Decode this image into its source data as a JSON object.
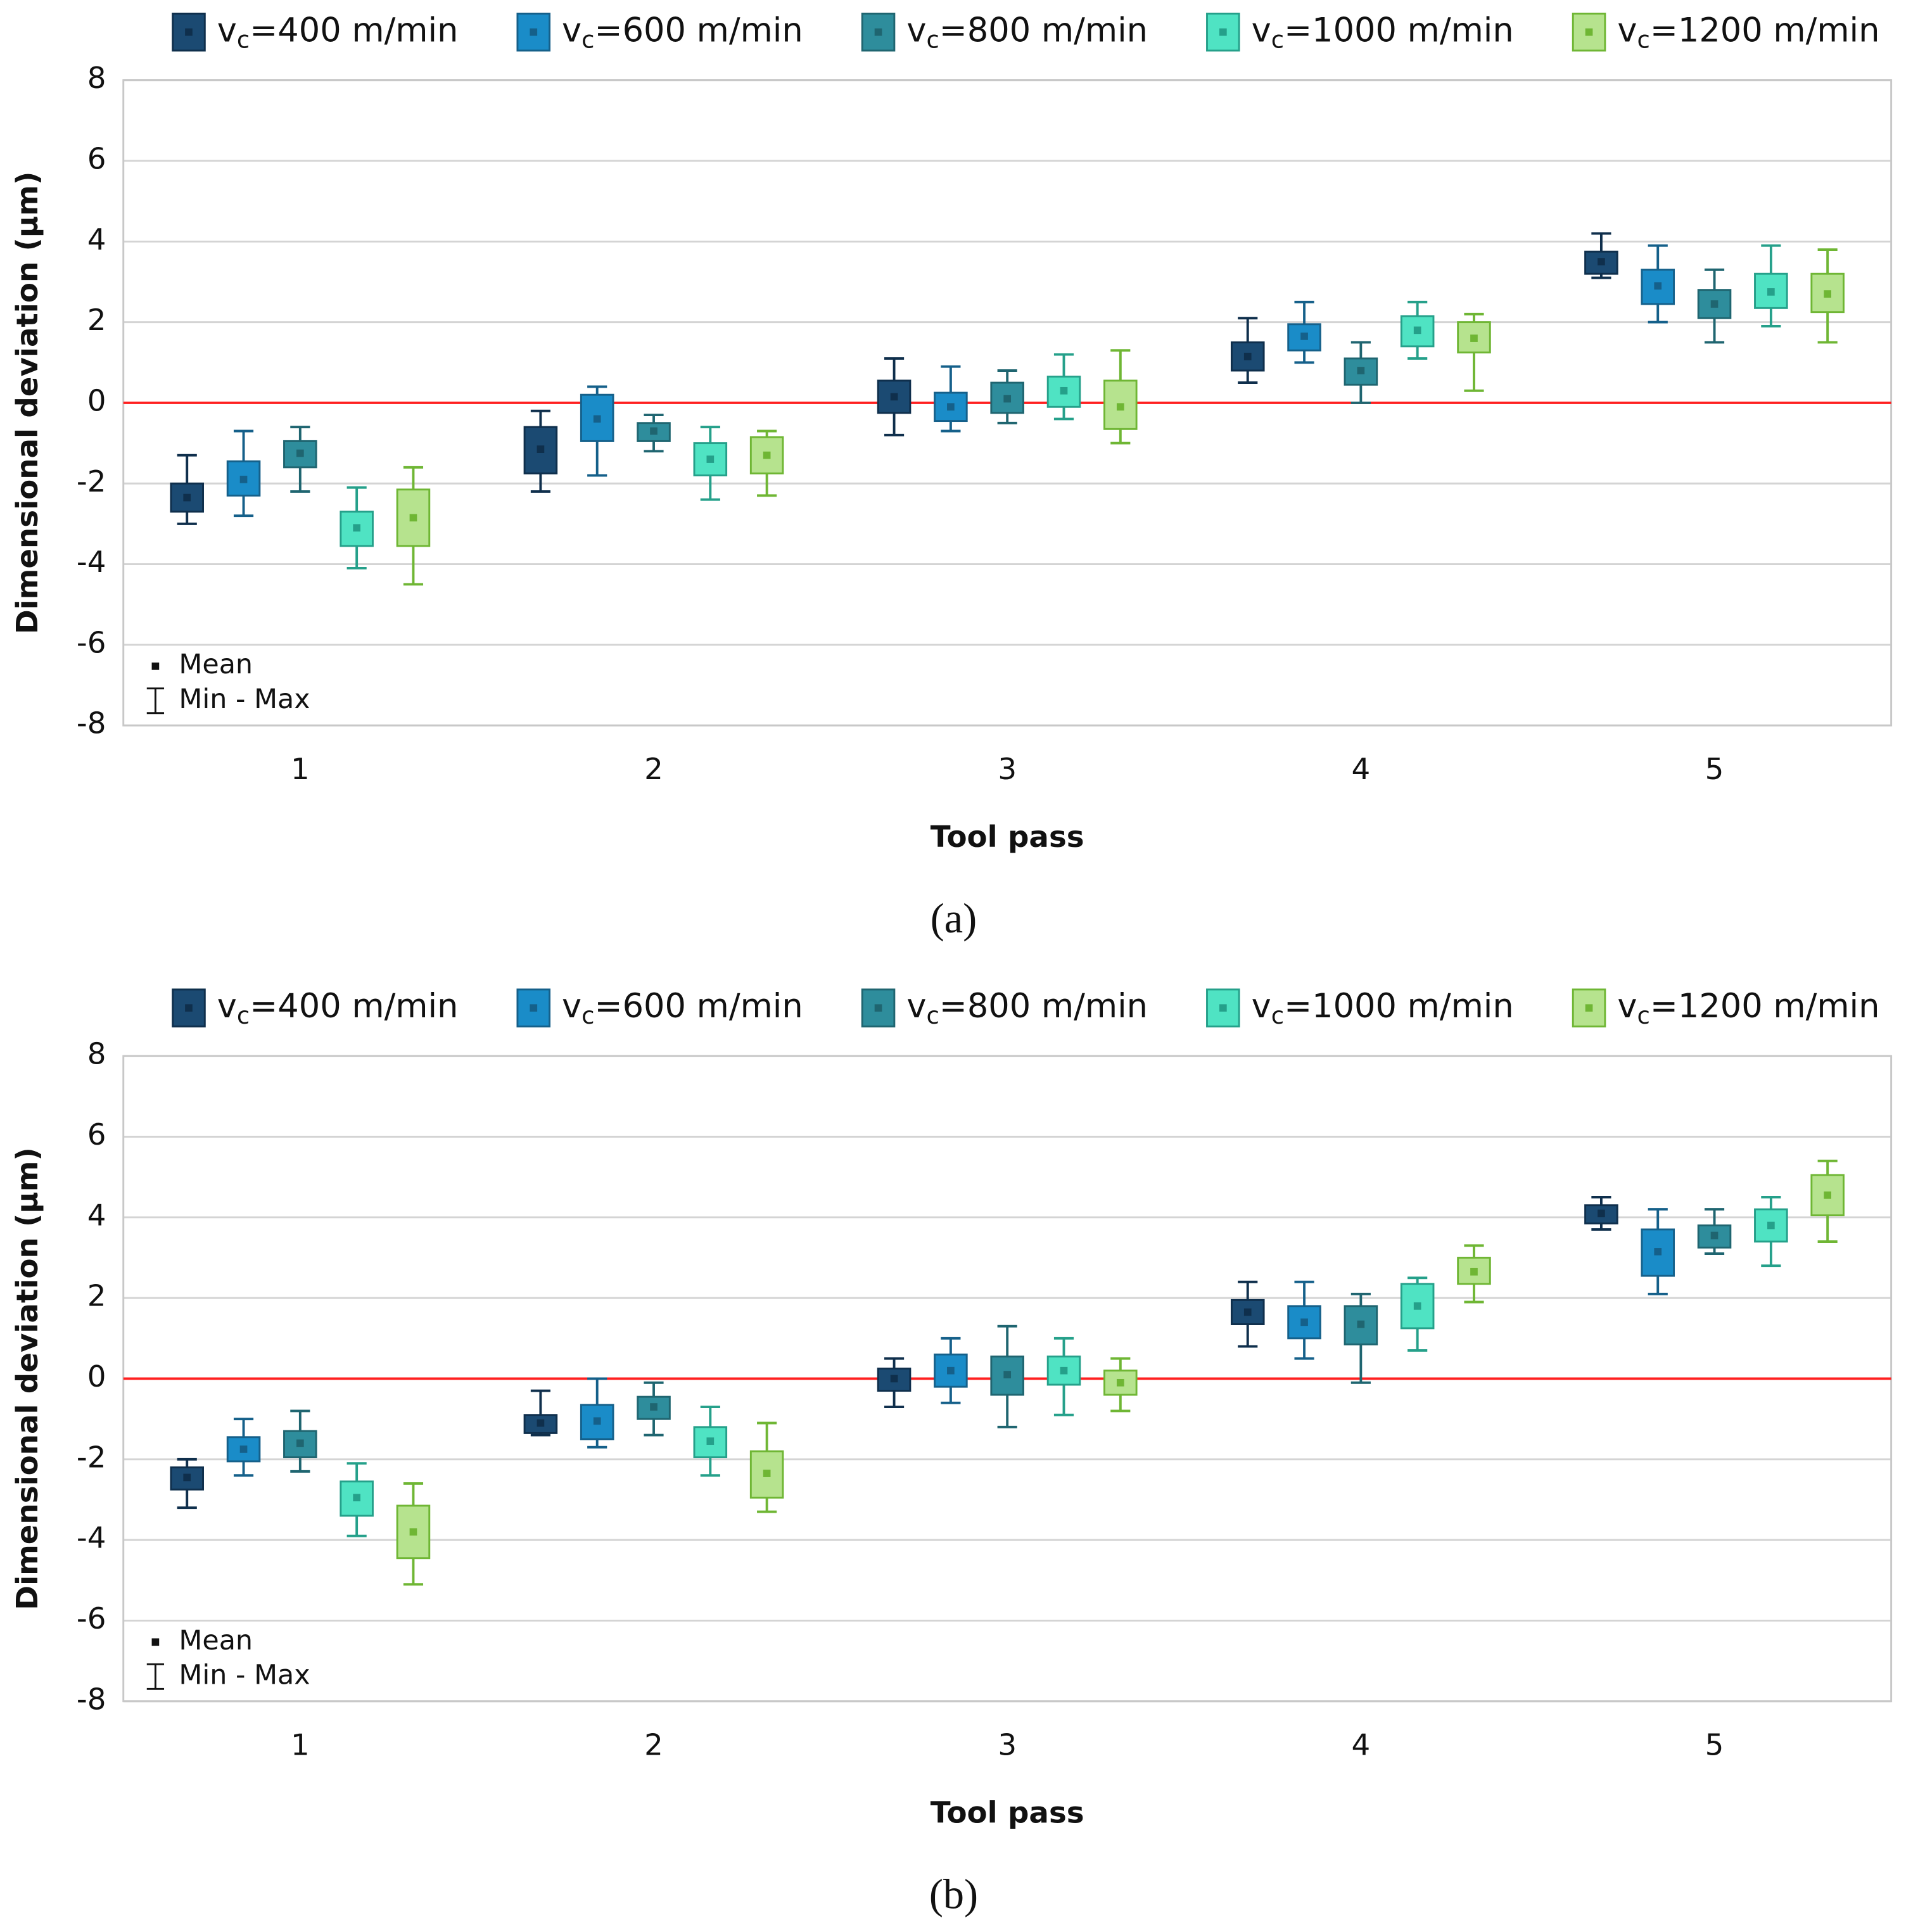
{
  "chart_data": [
    {
      "type": "box",
      "caption": "(a)",
      "xlabel": "Tool pass",
      "ylabel": "Dimensional deviation (µm)",
      "categories": [
        "1",
        "2",
        "3",
        "4",
        "5"
      ],
      "ylim": [
        -8,
        8
      ],
      "yticks": [
        -8,
        -6,
        -4,
        -2,
        0,
        2,
        4,
        6,
        8
      ],
      "grid": true,
      "reference_line": {
        "value": 0,
        "color": "#ff2020"
      },
      "legend_position": "top",
      "legend_notes": {
        "mean": "Mean",
        "range": "Min - Max"
      },
      "series": [
        {
          "name": "vc=400 m/min",
          "color": "#1b4a72",
          "edge_color": "#0f2f4c",
          "min": [
            -3.0,
            -2.2,
            -0.8,
            0.5,
            3.1
          ],
          "box_low": [
            -2.7,
            -1.75,
            -0.25,
            0.8,
            3.2
          ],
          "box_high": [
            -2.0,
            -0.6,
            0.55,
            1.5,
            3.75
          ],
          "max": [
            -1.3,
            -0.2,
            1.1,
            2.1,
            4.2
          ],
          "mean": [
            -2.35,
            -1.15,
            0.15,
            1.15,
            3.5
          ]
        },
        {
          "name": "vc=600 m/min",
          "color": "#1a8cc8",
          "edge_color": "#15608a",
          "min": [
            -2.8,
            -1.8,
            -0.7,
            1.0,
            2.0
          ],
          "box_low": [
            -2.3,
            -0.95,
            -0.45,
            1.3,
            2.45
          ],
          "box_high": [
            -1.45,
            0.2,
            0.25,
            1.95,
            3.3
          ],
          "max": [
            -0.7,
            0.4,
            0.9,
            2.5,
            3.9
          ],
          "mean": [
            -1.9,
            -0.4,
            -0.1,
            1.65,
            2.9
          ]
        },
        {
          "name": "vc=800 m/min",
          "color": "#2e8d9c",
          "edge_color": "#1f6570",
          "min": [
            -2.2,
            -1.2,
            -0.5,
            0.0,
            1.5
          ],
          "box_low": [
            -1.6,
            -0.95,
            -0.25,
            0.45,
            2.1
          ],
          "box_high": [
            -0.95,
            -0.5,
            0.5,
            1.1,
            2.8
          ],
          "max": [
            -0.6,
            -0.3,
            0.8,
            1.5,
            3.3
          ],
          "mean": [
            -1.25,
            -0.7,
            0.1,
            0.8,
            2.45
          ]
        },
        {
          "name": "vc=1000 m/min",
          "color": "#4fe3c3",
          "edge_color": "#25a08a",
          "min": [
            -4.1,
            -2.4,
            -0.4,
            1.1,
            1.9
          ],
          "box_low": [
            -3.55,
            -1.8,
            -0.1,
            1.4,
            2.35
          ],
          "box_high": [
            -2.7,
            -1.0,
            0.65,
            2.15,
            3.2
          ],
          "max": [
            -2.1,
            -0.6,
            1.2,
            2.5,
            3.9
          ],
          "mean": [
            -3.1,
            -1.4,
            0.3,
            1.8,
            2.75
          ]
        },
        {
          "name": "vc=1200 m/min",
          "color": "#b6e38e",
          "edge_color": "#6fb634",
          "min": [
            -4.5,
            -2.3,
            -1.0,
            0.3,
            1.5
          ],
          "box_low": [
            -3.55,
            -1.75,
            -0.65,
            1.25,
            2.25
          ],
          "box_high": [
            -2.15,
            -0.85,
            0.55,
            2.0,
            3.2
          ],
          "max": [
            -1.6,
            -0.7,
            1.3,
            2.2,
            3.8
          ],
          "mean": [
            -2.85,
            -1.3,
            -0.1,
            1.6,
            2.7
          ]
        }
      ]
    },
    {
      "type": "box",
      "caption": "(b)",
      "xlabel": "Tool pass",
      "ylabel": "Dimensional deviation (µm)",
      "categories": [
        "1",
        "2",
        "3",
        "4",
        "5"
      ],
      "ylim": [
        -8,
        8
      ],
      "yticks": [
        -8,
        -6,
        -4,
        -2,
        0,
        2,
        4,
        6,
        8
      ],
      "grid": true,
      "reference_line": {
        "value": 0,
        "color": "#ff2020"
      },
      "legend_position": "top",
      "legend_notes": {
        "mean": "Mean",
        "range": "Min - Max"
      },
      "series": [
        {
          "name": "vc=400 m/min",
          "color": "#1b4a72",
          "edge_color": "#0f2f4c",
          "min": [
            -3.2,
            -1.4,
            -0.7,
            0.8,
            3.7
          ],
          "box_low": [
            -2.75,
            -1.35,
            -0.3,
            1.35,
            3.85
          ],
          "box_high": [
            -2.2,
            -0.9,
            0.25,
            1.95,
            4.3
          ],
          "max": [
            -2.0,
            -0.3,
            0.5,
            2.4,
            4.5
          ],
          "mean": [
            -2.45,
            -1.1,
            0.0,
            1.65,
            4.1
          ]
        },
        {
          "name": "vc=600 m/min",
          "color": "#1a8cc8",
          "edge_color": "#15608a",
          "min": [
            -2.4,
            -1.7,
            -0.6,
            0.5,
            2.1
          ],
          "box_low": [
            -2.05,
            -1.5,
            -0.2,
            1.0,
            2.55
          ],
          "box_high": [
            -1.45,
            -0.65,
            0.6,
            1.8,
            3.7
          ],
          "max": [
            -1.0,
            0.0,
            1.0,
            2.4,
            4.2
          ],
          "mean": [
            -1.75,
            -1.05,
            0.2,
            1.4,
            3.15
          ]
        },
        {
          "name": "vc=800 m/min",
          "color": "#2e8d9c",
          "edge_color": "#1f6570",
          "min": [
            -2.3,
            -1.4,
            -1.2,
            -0.1,
            3.1
          ],
          "box_low": [
            -1.95,
            -1.0,
            -0.4,
            0.85,
            3.25
          ],
          "box_high": [
            -1.3,
            -0.45,
            0.55,
            1.8,
            3.8
          ],
          "max": [
            -0.8,
            -0.1,
            1.3,
            2.1,
            4.2
          ],
          "mean": [
            -1.6,
            -0.7,
            0.1,
            1.35,
            3.55
          ]
        },
        {
          "name": "vc=1000 m/min",
          "color": "#4fe3c3",
          "edge_color": "#25a08a",
          "min": [
            -3.9,
            -2.4,
            -0.9,
            0.7,
            2.8
          ],
          "box_low": [
            -3.4,
            -1.95,
            -0.15,
            1.25,
            3.4
          ],
          "box_high": [
            -2.55,
            -1.2,
            0.55,
            2.35,
            4.2
          ],
          "max": [
            -2.1,
            -0.7,
            1.0,
            2.5,
            4.5
          ],
          "mean": [
            -2.95,
            -1.55,
            0.2,
            1.8,
            3.8
          ]
        },
        {
          "name": "vc=1200 m/min",
          "color": "#b6e38e",
          "edge_color": "#6fb634",
          "min": [
            -5.1,
            -3.3,
            -0.8,
            1.9,
            3.4
          ],
          "box_low": [
            -4.45,
            -2.95,
            -0.4,
            2.35,
            4.05
          ],
          "box_high": [
            -3.15,
            -1.8,
            0.2,
            3.0,
            5.05
          ],
          "max": [
            -2.6,
            -1.1,
            0.5,
            3.3,
            5.4
          ],
          "mean": [
            -3.8,
            -2.35,
            -0.1,
            2.65,
            4.55
          ]
        }
      ]
    }
  ]
}
